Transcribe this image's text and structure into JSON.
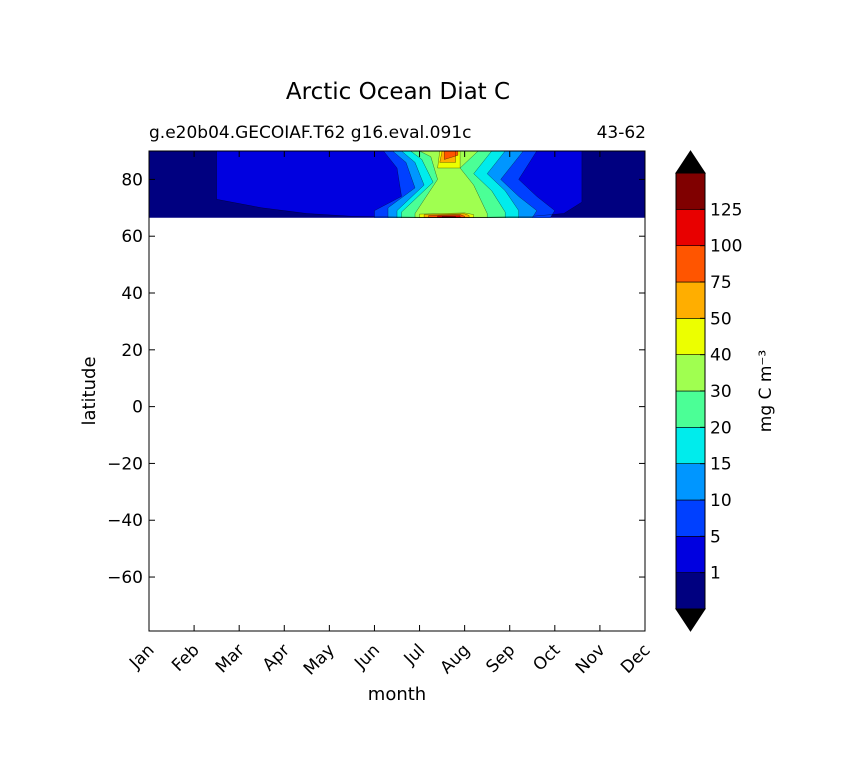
{
  "chart_data": {
    "type": "heatmap",
    "title": "Arctic Ocean Diat C",
    "subtitle_left": "g.e20b04.GECOIAF.T62 g16.eval.091c",
    "subtitle_right": "43-62",
    "xlabel": "month",
    "ylabel": "latitude",
    "x_categories": [
      "Jan",
      "Feb",
      "Mar",
      "Apr",
      "May",
      "Jun",
      "Jul",
      "Aug",
      "Sep",
      "Oct",
      "Nov",
      "Dec"
    ],
    "ylim": [
      -79,
      90
    ],
    "y_ticks": [
      80,
      60,
      40,
      20,
      0,
      -20,
      -40,
      -60
    ],
    "y_tick_labels": [
      "80",
      "60",
      "40",
      "20",
      "0",
      "−20",
      "−40",
      "−60"
    ],
    "data_lat_range": [
      66.5,
      90
    ],
    "colorbar": {
      "label": "mg C m⁻³",
      "extend": "both",
      "levels": [
        0,
        1,
        5,
        10,
        15,
        20,
        30,
        40,
        50,
        75,
        100,
        125,
        150
      ],
      "tick_labels": [
        "1",
        "5",
        "10",
        "15",
        "20",
        "30",
        "40",
        "50",
        "75",
        "100",
        "125"
      ],
      "colors": [
        "#000080",
        "#0000e0",
        "#0040ff",
        "#0096ff",
        "#00ecec",
        "#4bff96",
        "#a0ff50",
        "#ecff00",
        "#ffae00",
        "#ff5500",
        "#e80000",
        "#800000"
      ],
      "under_color": "#000000",
      "over_color": "#000000"
    },
    "grid": false,
    "contours": [
      {
        "level": 1,
        "points": [
          [
            1.5,
            90
          ],
          [
            1.5,
            73
          ],
          [
            2.5,
            70
          ],
          [
            3.5,
            68
          ],
          [
            4.5,
            67
          ],
          [
            6,
            66.7
          ],
          [
            7.5,
            66.7
          ],
          [
            8.5,
            67
          ],
          [
            9.2,
            68
          ],
          [
            9.6,
            72
          ],
          [
            9.6,
            90
          ]
        ]
      },
      {
        "level": 5,
        "points": [
          [
            5.0,
            66.5
          ],
          [
            5.0,
            69
          ],
          [
            5.6,
            74
          ],
          [
            5.5,
            84
          ],
          [
            5.2,
            90
          ],
          [
            8.6,
            90
          ],
          [
            8.2,
            80
          ],
          [
            8.6,
            74
          ],
          [
            9.0,
            69
          ],
          [
            8.9,
            66.5
          ]
        ]
      },
      {
        "level": 10,
        "points": [
          [
            5.3,
            66.5
          ],
          [
            5.3,
            70
          ],
          [
            5.9,
            77
          ],
          [
            5.7,
            86
          ],
          [
            5.4,
            90
          ],
          [
            8.3,
            90
          ],
          [
            7.8,
            80
          ],
          [
            8.2,
            74
          ],
          [
            8.6,
            69
          ],
          [
            8.5,
            66.5
          ]
        ]
      },
      {
        "level": 15,
        "points": [
          [
            5.5,
            66.5
          ],
          [
            5.5,
            69
          ],
          [
            6.1,
            78
          ],
          [
            5.9,
            86
          ],
          [
            5.6,
            90
          ],
          [
            7.9,
            90
          ],
          [
            7.5,
            82
          ],
          [
            7.9,
            76
          ],
          [
            8.2,
            69
          ],
          [
            8.2,
            66.5
          ]
        ]
      },
      {
        "level": 20,
        "points": [
          [
            5.6,
            66.5
          ],
          [
            5.6,
            68.5
          ],
          [
            6.3,
            79
          ],
          [
            6.05,
            87
          ],
          [
            5.8,
            90
          ],
          [
            7.6,
            90
          ],
          [
            7.2,
            82
          ],
          [
            7.6,
            76
          ],
          [
            7.9,
            68.5
          ],
          [
            7.9,
            66.5
          ]
        ]
      },
      {
        "level": 30,
        "points": [
          [
            5.9,
            66.5
          ],
          [
            5.9,
            68
          ],
          [
            6.4,
            80
          ],
          [
            6.25,
            88
          ],
          [
            6.0,
            90
          ],
          [
            7.3,
            90
          ],
          [
            6.9,
            84
          ],
          [
            7.2,
            78
          ],
          [
            7.5,
            68
          ],
          [
            7.5,
            66.5
          ]
        ]
      },
      {
        "level": 40,
        "points": [
          [
            6.0,
            66.5
          ],
          [
            6.0,
            67.8
          ],
          [
            7.0,
            68.2
          ],
          [
            7.2,
            67.6
          ],
          [
            7.2,
            66.5
          ]
        ]
      },
      {
        "level": 40,
        "points": [
          [
            6.45,
            90
          ],
          [
            6.4,
            84
          ],
          [
            6.9,
            84
          ],
          [
            6.9,
            90
          ]
        ]
      },
      {
        "level": 50,
        "points": [
          [
            6.1,
            66.5
          ],
          [
            6.1,
            67.6
          ],
          [
            7.0,
            67.9
          ],
          [
            7.1,
            67.3
          ],
          [
            7.1,
            66.5
          ]
        ]
      },
      {
        "level": 50,
        "points": [
          [
            6.5,
            90
          ],
          [
            6.45,
            86
          ],
          [
            6.8,
            86
          ],
          [
            6.8,
            90
          ]
        ]
      },
      {
        "level": 75,
        "points": [
          [
            6.2,
            66.5
          ],
          [
            6.2,
            67.3
          ],
          [
            6.9,
            67.6
          ],
          [
            7.0,
            67.0
          ],
          [
            7.0,
            66.5
          ]
        ]
      },
      {
        "level": 75,
        "points": [
          [
            6.55,
            90
          ],
          [
            6.55,
            87
          ],
          [
            6.85,
            88.5
          ],
          [
            6.85,
            90
          ]
        ]
      },
      {
        "level": 100,
        "points": [
          [
            6.4,
            66.5
          ],
          [
            6.4,
            67.1
          ],
          [
            6.9,
            67.2
          ],
          [
            6.9,
            66.5
          ]
        ]
      },
      {
        "level": 125,
        "points": [
          [
            6.5,
            66.5
          ],
          [
            6.5,
            66.9
          ],
          [
            6.8,
            66.9
          ],
          [
            6.8,
            66.5
          ]
        ]
      }
    ]
  }
}
